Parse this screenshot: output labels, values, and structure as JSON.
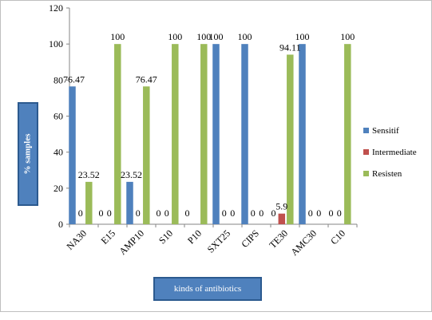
{
  "chart_data": {
    "type": "bar",
    "categories": [
      "NA30",
      "E15",
      "AMP10",
      "S10",
      "P10",
      "SXT25",
      "CIPS",
      "TE30",
      "AMC30",
      "C10"
    ],
    "series": [
      {
        "name": "Sensitif",
        "color": "#4f81bd",
        "values": [
          76.47,
          0,
          23.52,
          0,
          0,
          100,
          100,
          0,
          100,
          0
        ],
        "labels": [
          "76.47",
          "0",
          "23.52",
          "0",
          "0",
          "100",
          "100",
          "0",
          "100",
          "0"
        ]
      },
      {
        "name": "Intermediate",
        "color": "#c0504d",
        "values": [
          0,
          0,
          0,
          0,
          0,
          0,
          0,
          5.9,
          0,
          0
        ],
        "labels": [
          "0",
          "0",
          "0",
          "0",
          "",
          "0",
          "0",
          "5.9",
          "0",
          "0"
        ]
      },
      {
        "name": "Resisten",
        "color": "#9bbb59",
        "values": [
          23.52,
          100,
          76.47,
          100,
          100,
          0,
          0,
          94.11,
          0,
          100
        ],
        "labels": [
          "23.52",
          "100",
          "76.47",
          "100",
          "100",
          "0",
          "0",
          "94.11",
          "0",
          "100"
        ]
      }
    ],
    "yticks": [
      "0",
      "20",
      "40",
      "60",
      "80",
      "100",
      "120"
    ],
    "ylim": [
      0,
      120
    ],
    "ylabel": "% samples",
    "xlabel": "kinds of antibiotics",
    "legend_position": "right"
  }
}
